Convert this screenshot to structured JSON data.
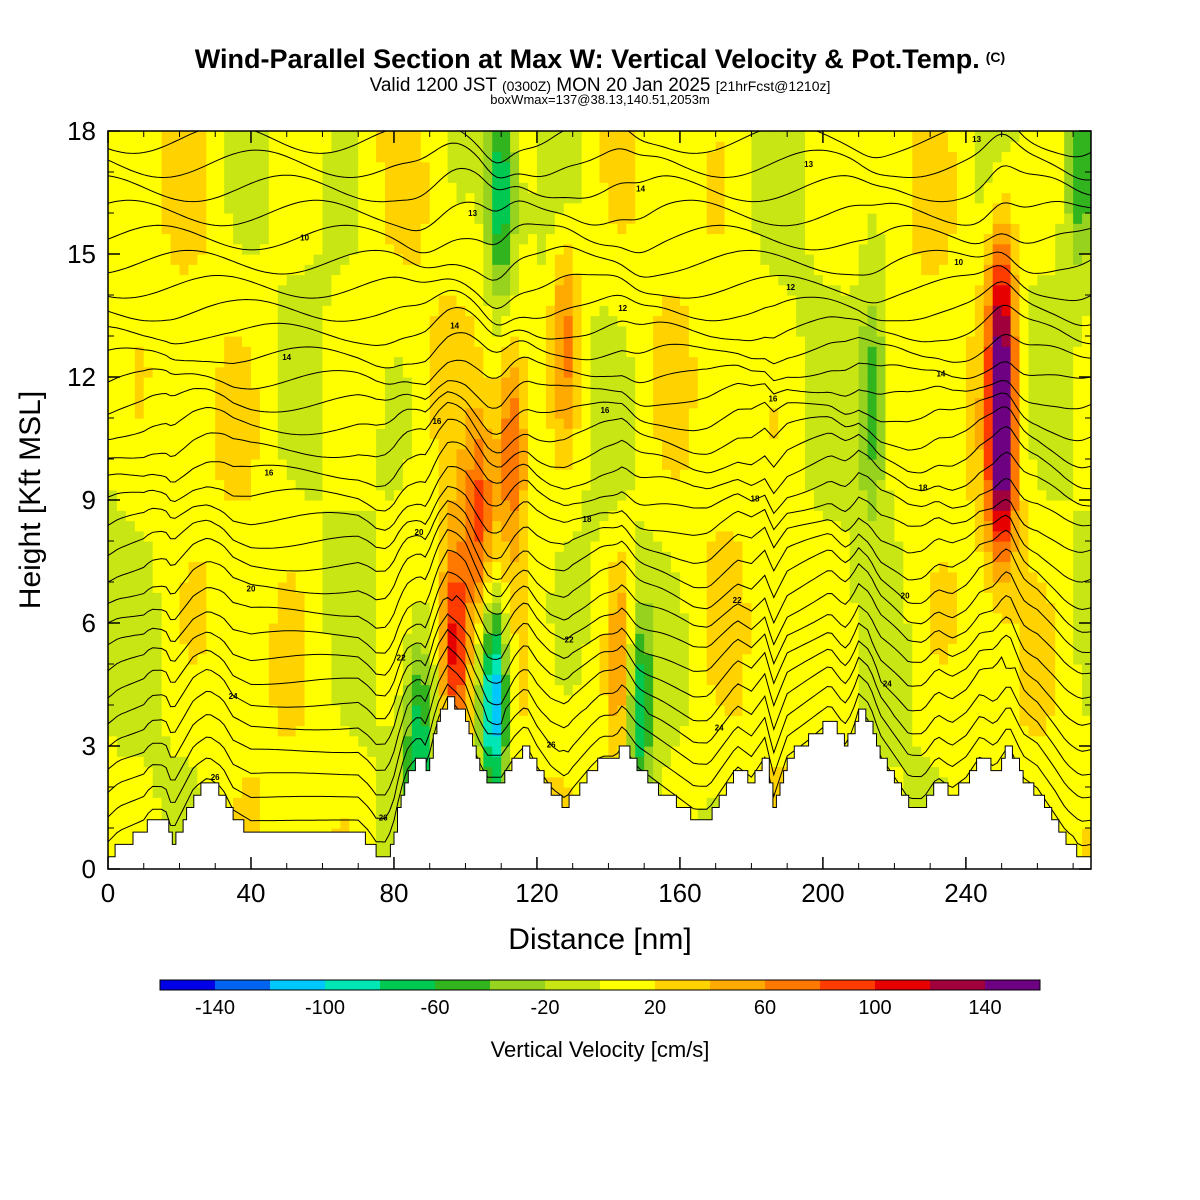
{
  "header": {
    "title": "Wind-Parallel Section at Max W: Vertical Velocity & Pot.Temp.",
    "copyright": "(C)",
    "valid_prefix": "Valid 1200 JST",
    "valid_utc": "(0300Z)",
    "valid_date": "MON 20 Jan 2025",
    "forecast": "[21hrFcst@1210z]",
    "boxwmax": "boxWmax=137@38.13,140.51,2053m"
  },
  "chart_data": {
    "type": "heatmap",
    "xlabel": "Distance [nm]",
    "ylabel": "Height [Kft MSL]",
    "xlim": [
      0,
      275
    ],
    "ylim": [
      0,
      18
    ],
    "x_ticks": [
      "0",
      "40",
      "80",
      "120",
      "160",
      "200",
      "240"
    ],
    "y_ticks": [
      "0",
      "3",
      "6",
      "9",
      "12",
      "15",
      "18"
    ],
    "colorbar": {
      "label": "Vertical Velocity [cm/s]",
      "boundaries": [
        -160,
        -140,
        -120,
        -100,
        -80,
        -60,
        -40,
        -20,
        0,
        20,
        40,
        60,
        80,
        100,
        120,
        140,
        160
      ],
      "tick_labels": [
        "-140",
        "-100",
        "-60",
        "-20",
        "20",
        "60",
        "100",
        "140"
      ],
      "colors": [
        "#0000e6",
        "#0064f0",
        "#00c8ff",
        "#00e6b4",
        "#00c850",
        "#32b41e",
        "#96d21e",
        "#c8e614",
        "#ffff00",
        "#ffd200",
        "#ffaa00",
        "#ff7800",
        "#ff3c00",
        "#e60000",
        "#a0003c",
        "#6e0082"
      ]
    },
    "terrain_kft": [
      [
        0,
        0.3
      ],
      [
        3,
        0.6
      ],
      [
        10,
        0.9
      ],
      [
        12,
        1.2
      ],
      [
        16,
        1.2
      ],
      [
        18,
        0.6
      ],
      [
        21,
        1.2
      ],
      [
        24,
        1.8
      ],
      [
        28,
        2.1
      ],
      [
        32,
        1.8
      ],
      [
        35,
        1.2
      ],
      [
        40,
        0.9
      ],
      [
        50,
        0.9
      ],
      [
        60,
        0.9
      ],
      [
        70,
        0.9
      ],
      [
        73,
        0.6
      ],
      [
        75,
        0.3
      ],
      [
        78,
        0.3
      ],
      [
        80,
        0.9
      ],
      [
        82,
        1.8
      ],
      [
        84,
        2.4
      ],
      [
        87,
        2.7
      ],
      [
        89,
        2.4
      ],
      [
        92,
        3.6
      ],
      [
        95,
        4.2
      ],
      [
        98,
        3.9
      ],
      [
        100,
        3.6
      ],
      [
        103,
        2.7
      ],
      [
        106,
        2.1
      ],
      [
        110,
        2.1
      ],
      [
        114,
        2.7
      ],
      [
        117,
        3.0
      ],
      [
        120,
        2.4
      ],
      [
        124,
        1.8
      ],
      [
        128,
        1.5
      ],
      [
        130,
        1.8
      ],
      [
        135,
        2.4
      ],
      [
        138,
        2.7
      ],
      [
        142,
        2.7
      ],
      [
        144,
        3.0
      ],
      [
        148,
        2.4
      ],
      [
        152,
        2.1
      ],
      [
        156,
        1.8
      ],
      [
        160,
        1.5
      ],
      [
        164,
        1.2
      ],
      [
        168,
        1.2
      ],
      [
        172,
        1.8
      ],
      [
        176,
        2.4
      ],
      [
        180,
        2.1
      ],
      [
        184,
        2.7
      ],
      [
        186,
        1.5
      ],
      [
        190,
        2.7
      ],
      [
        194,
        3.0
      ],
      [
        198,
        3.3
      ],
      [
        202,
        3.6
      ],
      [
        206,
        3.0
      ],
      [
        208,
        3.3
      ],
      [
        210,
        3.9
      ],
      [
        213,
        3.6
      ],
      [
        216,
        2.7
      ],
      [
        220,
        2.1
      ],
      [
        224,
        1.5
      ],
      [
        228,
        1.5
      ],
      [
        232,
        2.1
      ],
      [
        236,
        1.8
      ],
      [
        240,
        2.1
      ],
      [
        244,
        2.7
      ],
      [
        248,
        2.4
      ],
      [
        252,
        3.0
      ],
      [
        256,
        2.1
      ],
      [
        260,
        1.8
      ],
      [
        264,
        1.2
      ],
      [
        268,
        0.6
      ],
      [
        272,
        0.3
      ],
      [
        275,
        0.3
      ]
    ],
    "updraft_cores": [
      {
        "x": 97,
        "z": 5.5,
        "w": 110
      },
      {
        "x": 104,
        "z": 8.5,
        "w": 70
      },
      {
        "x": 113,
        "z": 10.5,
        "w": 80
      },
      {
        "x": 128,
        "z": 13,
        "w": 60
      },
      {
        "x": 144,
        "z": 4.8,
        "w": 70
      },
      {
        "x": 250,
        "z": 10,
        "w": 137
      },
      {
        "x": 250,
        "z": 13.5,
        "w": 100
      }
    ],
    "downdraft_cores": [
      {
        "x": 108,
        "z": 4.2,
        "w": -140
      },
      {
        "x": 110,
        "z": 16.5,
        "w": -90
      },
      {
        "x": 87,
        "z": 3.0,
        "w": -80
      },
      {
        "x": 148,
        "z": 4.0,
        "w": -90
      },
      {
        "x": 214,
        "z": 11.5,
        "w": -70
      },
      {
        "x": 272,
        "z": 17.5,
        "w": -60
      }
    ],
    "theta_contour_labels": [
      "26",
      "26",
      "26",
      "24",
      "24",
      "24",
      "22",
      "22",
      "22",
      "20",
      "20",
      "20",
      "18",
      "18",
      "18",
      "16",
      "16",
      "16",
      "16",
      "14",
      "14",
      "14",
      "12",
      "12",
      "10",
      "10",
      "13",
      "14",
      "13",
      "13"
    ]
  }
}
